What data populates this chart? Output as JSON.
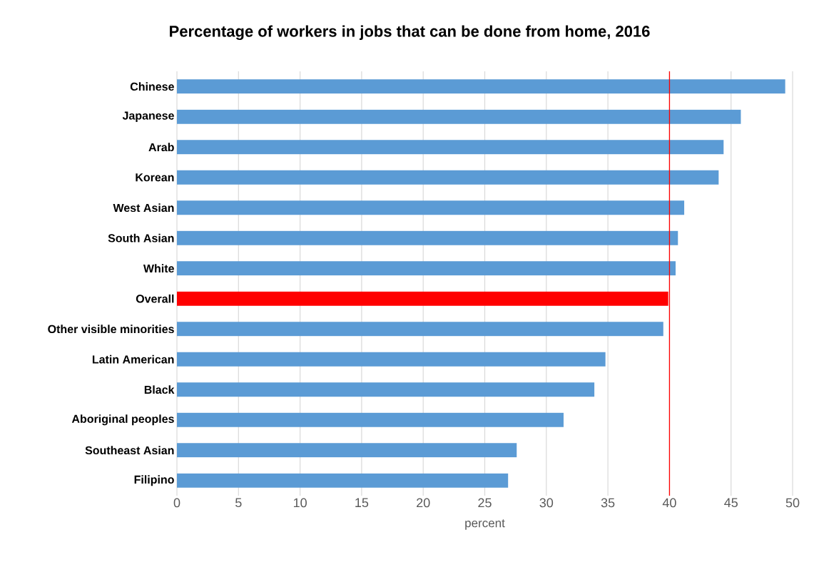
{
  "chart_data": {
    "type": "bar",
    "orientation": "horizontal",
    "title": "Percentage of workers in jobs that can be done from home, 2016",
    "xlabel": "percent",
    "categories": [
      "Chinese",
      "Japanese",
      "Arab",
      "Korean",
      "West Asian",
      "South Asian",
      "White",
      "Overall",
      "Other visible minorities",
      "Latin American",
      "Black",
      "Aboriginal peoples",
      "Southeast Asian",
      "Filipino"
    ],
    "values": [
      49.4,
      45.8,
      44.4,
      44.0,
      41.2,
      40.7,
      40.5,
      39.9,
      39.5,
      34.8,
      33.9,
      31.4,
      27.6,
      26.9
    ],
    "colors": [
      "#5b9bd5",
      "#5b9bd5",
      "#5b9bd5",
      "#5b9bd5",
      "#5b9bd5",
      "#5b9bd5",
      "#5b9bd5",
      "#ff0000",
      "#5b9bd5",
      "#5b9bd5",
      "#5b9bd5",
      "#5b9bd5",
      "#5b9bd5",
      "#5b9bd5"
    ],
    "xlim": [
      0,
      50
    ],
    "xticks": [
      0,
      5,
      10,
      15,
      20,
      25,
      30,
      35,
      40,
      45,
      50
    ],
    "grid": "x",
    "ref_lines": [
      {
        "axis": "x",
        "value": 40,
        "color": "#ff0000",
        "line_style": "solid"
      }
    ]
  }
}
